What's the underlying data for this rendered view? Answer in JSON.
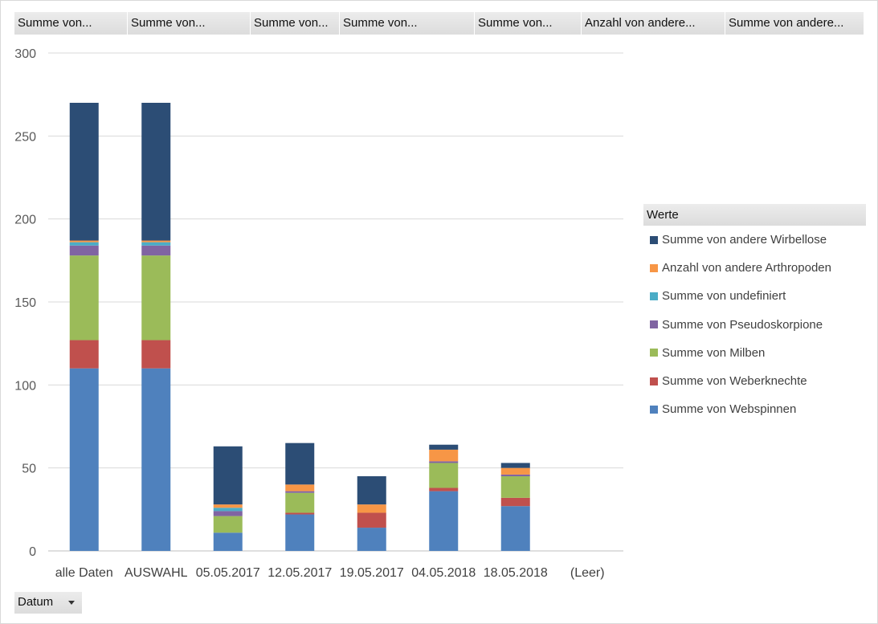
{
  "field_buttons": [
    "Summe von...",
    "Summe von...",
    "Summe von...",
    "Summe von...",
    "Summe von...",
    "Anzahl von andere...",
    "Summe von andere..."
  ],
  "legend_title": "Werte",
  "axis_field_button": "Datum",
  "chart_data": {
    "type": "bar",
    "stacked": true,
    "categories": [
      "alle Daten",
      "AUSWAHL",
      "05.05.2017",
      "12.05.2017",
      "19.05.2017",
      "04.05.2018",
      "18.05.2018",
      "(Leer)"
    ],
    "ylim": [
      0,
      300
    ],
    "yticks": [
      0,
      50,
      100,
      150,
      200,
      250,
      300
    ],
    "grid": true,
    "legend_position": "right",
    "series": [
      {
        "name": "Summe von Webspinnen",
        "color": "#4f81bd",
        "values": [
          110,
          110,
          11,
          22,
          14,
          36,
          27,
          0
        ]
      },
      {
        "name": "Summe von Weberknechte",
        "color": "#c0504d",
        "values": [
          17,
          17,
          0,
          1,
          9,
          2,
          5,
          0
        ]
      },
      {
        "name": "Summe von Milben",
        "color": "#9bbb59",
        "values": [
          51,
          51,
          10,
          12,
          0,
          15,
          13,
          0
        ]
      },
      {
        "name": "Summe von Pseudoskorpione",
        "color": "#8064a2",
        "values": [
          6,
          6,
          3,
          1,
          0,
          1,
          1,
          0
        ]
      },
      {
        "name": "Summe von undefiniert",
        "color": "#4bacc6",
        "values": [
          2,
          2,
          2,
          0,
          0,
          0,
          0,
          0
        ]
      },
      {
        "name": "Anzahl von andere Arthropoden",
        "color": "#f79646",
        "values": [
          1,
          1,
          2,
          4,
          5,
          7,
          4,
          0
        ]
      },
      {
        "name": "Summe von andere Wirbellose",
        "color": "#2c4d75",
        "values": [
          83,
          83,
          35,
          25,
          17,
          3,
          3,
          0
        ]
      }
    ]
  }
}
